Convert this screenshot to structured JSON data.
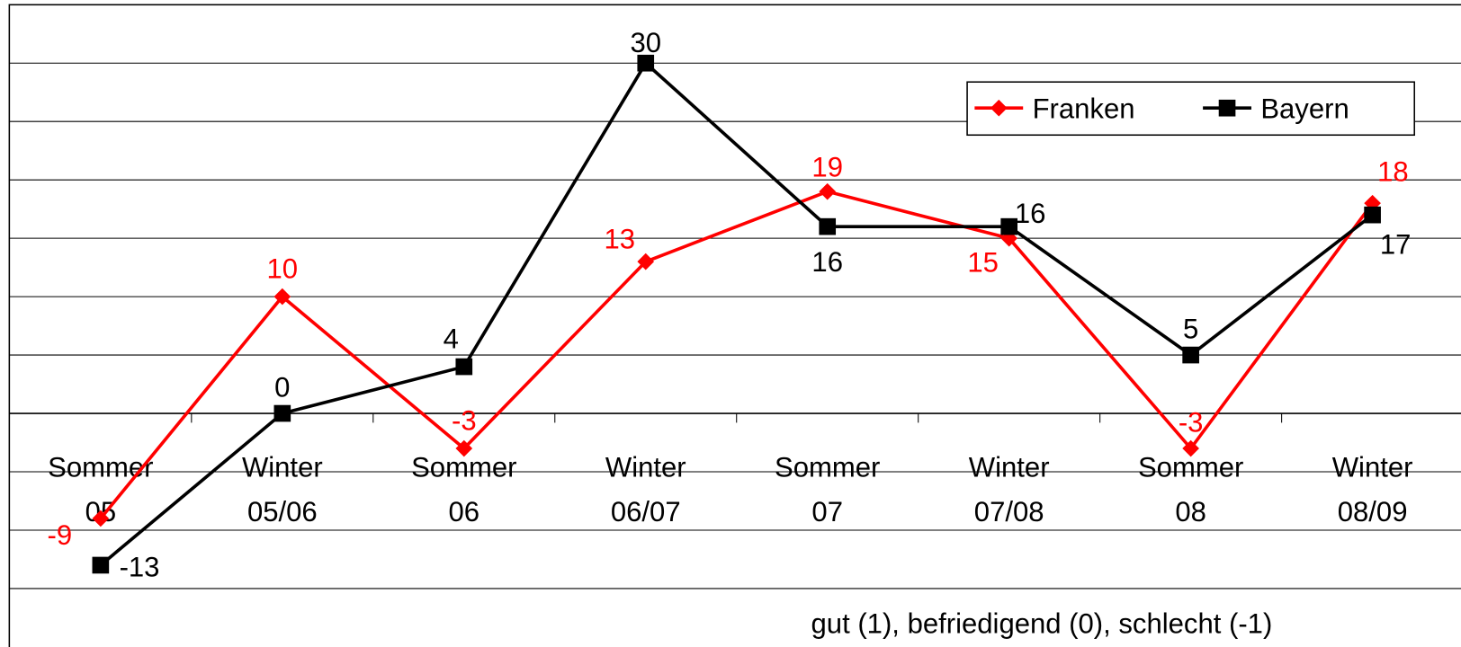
{
  "chart_data": {
    "type": "line",
    "categories": [
      "Sommer 05",
      "Winter 05/06",
      "Sommer 06",
      "Winter 06/07",
      "Sommer 07",
      "Winter 07/08",
      "Sommer 08",
      "Winter 08/09"
    ],
    "series": [
      {
        "name": "Franken",
        "color": "#ff0000",
        "marker": "diamond",
        "values": [
          -9,
          10,
          -3,
          13,
          19,
          15,
          -3,
          18
        ]
      },
      {
        "name": "Bayern",
        "color": "#000000",
        "marker": "square",
        "values": [
          -13,
          0,
          4,
          30,
          16,
          16,
          5,
          17
        ]
      }
    ],
    "ylim": [
      -20,
      35
    ],
    "yticks": [
      -15,
      -10,
      -5,
      0,
      5,
      10,
      15,
      20,
      25,
      30
    ],
    "grid": true,
    "legend": "top-right",
    "annotation": "gut (1), befriedigend (0), schlecht (-1)"
  }
}
